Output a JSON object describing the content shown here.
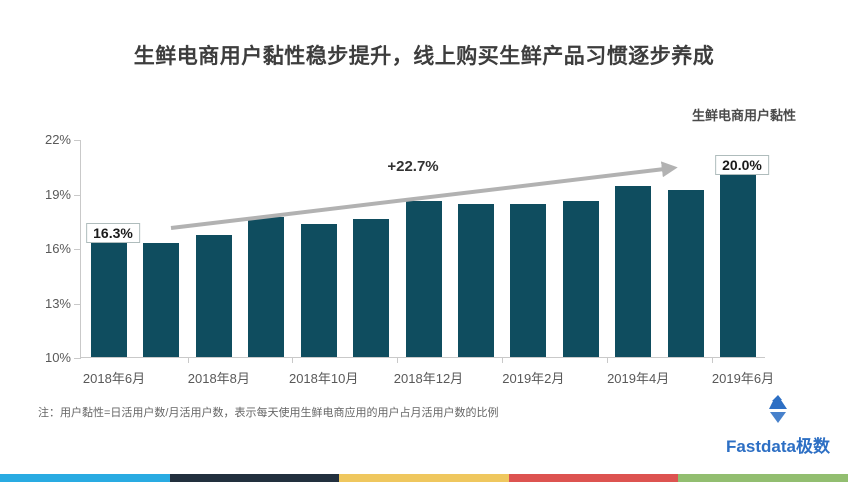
{
  "title": "生鲜电商用户黏性稳步提升，线上购买生鲜产品习惯逐步养成",
  "legend": "生鲜电商用户黏性",
  "note": "注：用户黏性=日活用户数/月活用户数，表示每天使用生鲜电商应用的用户占月活用户数的比例",
  "logo": {
    "text": "Fastdata极数",
    "color": "#2d6fc4"
  },
  "annotations": {
    "first_value_label": "16.3%",
    "last_value_label": "20.0%",
    "growth_label": "+22.7%"
  },
  "colors": {
    "bar": "#0f4d5f",
    "axis": "#c9c9c9",
    "arrow": "#b2b2b2",
    "title_text": "#3d3d3d",
    "tick_text": "#595959"
  },
  "footer_stripe_colors": [
    "#29abe2",
    "#22303e",
    "#efc75e",
    "#dd5350",
    "#92be70"
  ],
  "chart_data": {
    "type": "bar",
    "title": "生鲜电商用户黏性",
    "categories": [
      "2018年6月",
      "2018年7月",
      "2018年8月",
      "2018年9月",
      "2018年10月",
      "2018年11月",
      "2018年12月",
      "2019年1月",
      "2019年2月",
      "2019年3月",
      "2019年4月",
      "2019年5月",
      "2019年6月"
    ],
    "values": [
      16.3,
      16.3,
      16.7,
      17.7,
      17.3,
      17.6,
      18.6,
      18.4,
      18.4,
      18.6,
      19.4,
      19.2,
      20.0
    ],
    "unit": "%",
    "x_tick_labels": [
      "2018年6月",
      "2018年8月",
      "2018年10月",
      "2018年12月",
      "2019年2月",
      "2019年4月",
      "2019年6月"
    ],
    "ylim": [
      10,
      22
    ],
    "yticks": [
      22,
      19,
      16,
      13,
      10
    ],
    "ytick_labels": [
      "22%",
      "19%",
      "16%",
      "13%",
      "10%"
    ],
    "grid": false,
    "legend_position": "top-right",
    "annotations": [
      {
        "type": "value-label",
        "index": 0,
        "text": "16.3%"
      },
      {
        "type": "value-label",
        "index": 12,
        "text": "20.0%"
      },
      {
        "type": "growth-arrow",
        "text": "+22.7%"
      }
    ]
  }
}
